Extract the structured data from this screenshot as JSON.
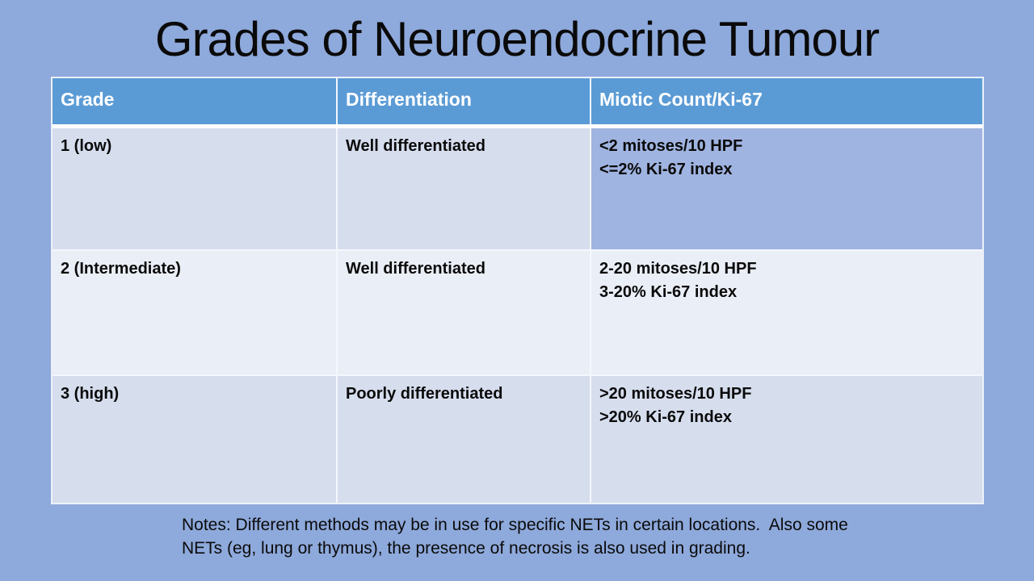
{
  "slide": {
    "title": "Grades of Neuroendocrine Tumour"
  },
  "table": {
    "columns": [
      "Grade",
      "Differentiation",
      "Miotic Count/Ki-67"
    ],
    "rows": [
      {
        "grade": "1 (low)",
        "differentiation": "Well differentiated",
        "miotic": [
          "<2 mitoses/10 HPF",
          "<=2% Ki-67 index"
        ]
      },
      {
        "grade": "2 (Intermediate)",
        "differentiation": "Well differentiated",
        "miotic": [
          "2-20 mitoses/10 HPF",
          "3-20% Ki-67 index"
        ]
      },
      {
        "grade": "3 (high)",
        "differentiation": "Poorly differentiated",
        "miotic": [
          ">20 mitoses/10 HPF",
          ">20% Ki-67 index"
        ]
      }
    ]
  },
  "notes": {
    "lines": [
      "Notes: Different methods may be in use for specific NETs in certain locations.  Also some",
      "NETs (eg, lung or thymus), the presence of necrosis is also used in grading."
    ]
  },
  "colors": {
    "slide_background": "#8EA9DB",
    "header_background": "#5B9BD5",
    "header_text": "#FFFFFF",
    "row_band_light": "#D6DEEE",
    "row_band_pale": "#EAEEF6",
    "row1_miotic_cell": "#A0B4E1",
    "grid_line": "#F4F7FC",
    "body_text": "#0a0a0a"
  }
}
